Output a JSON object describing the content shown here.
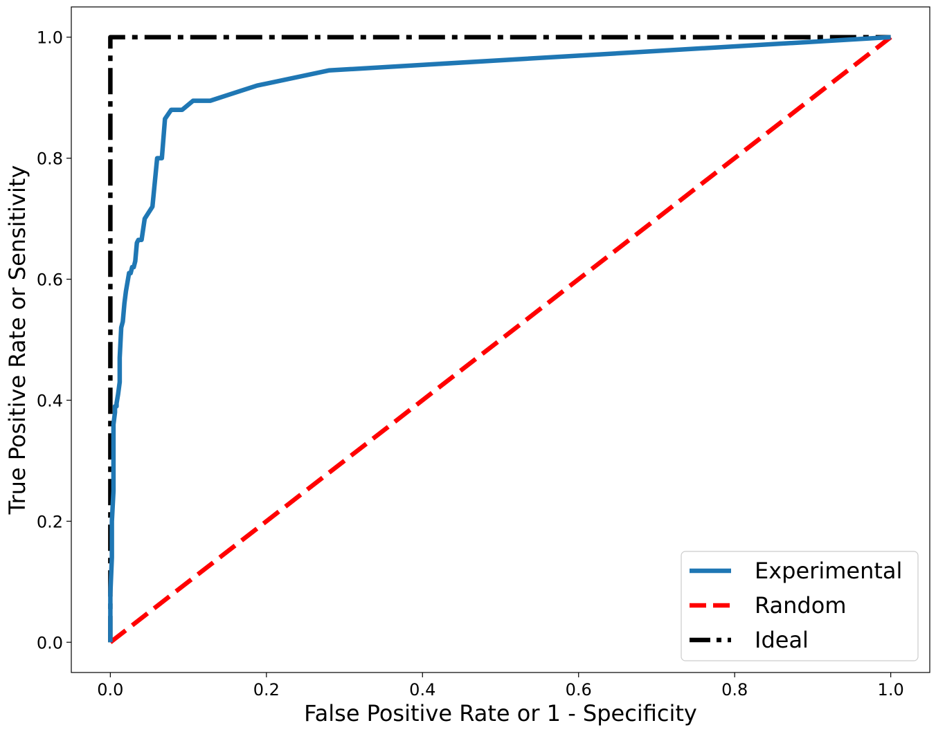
{
  "chart_data": {
    "type": "line",
    "title": "",
    "xlabel": "False Positive Rate or 1 - Specificity",
    "ylabel": "True Positive Rate or Sensitivity",
    "xlim": [
      -0.05,
      1.05
    ],
    "ylim": [
      -0.05,
      1.05
    ],
    "xticks": [
      0.0,
      0.2,
      0.4,
      0.6,
      0.8,
      1.0
    ],
    "yticks": [
      0.0,
      0.2,
      0.4,
      0.6,
      0.8,
      1.0
    ],
    "xtick_labels": [
      "0.0",
      "0.2",
      "0.4",
      "0.6",
      "0.8",
      "1.0"
    ],
    "ytick_labels": [
      "0.0",
      "0.2",
      "0.4",
      "0.6",
      "0.8",
      "1.0"
    ],
    "grid": false,
    "legend_position": "lower-right",
    "series": [
      {
        "name": "Experimental",
        "color": "#1f77b4",
        "style": "solid",
        "x": [
          0.0,
          0.0,
          0.002,
          0.002,
          0.004,
          0.004,
          0.006,
          0.006,
          0.008,
          0.008,
          0.01,
          0.012,
          0.012,
          0.014,
          0.016,
          0.018,
          0.02,
          0.024,
          0.026,
          0.028,
          0.03,
          0.032,
          0.034,
          0.036,
          0.04,
          0.044,
          0.054,
          0.06,
          0.062,
          0.066,
          0.07,
          0.078,
          0.092,
          0.106,
          0.128,
          0.152,
          0.188,
          0.28,
          1.0
        ],
        "y": [
          0.0,
          0.08,
          0.14,
          0.2,
          0.25,
          0.36,
          0.38,
          0.39,
          0.39,
          0.395,
          0.41,
          0.43,
          0.47,
          0.52,
          0.53,
          0.56,
          0.58,
          0.61,
          0.61,
          0.62,
          0.62,
          0.63,
          0.66,
          0.665,
          0.665,
          0.7,
          0.72,
          0.8,
          0.8,
          0.8,
          0.865,
          0.88,
          0.88,
          0.895,
          0.895,
          0.905,
          0.92,
          0.945,
          1.0
        ]
      },
      {
        "name": "Random",
        "color": "#ff0000",
        "style": "dashed",
        "x": [
          0.0,
          1.0
        ],
        "y": [
          0.0,
          1.0
        ]
      },
      {
        "name": "Ideal",
        "color": "#000000",
        "style": "dashdot",
        "x": [
          0.0,
          0.0,
          1.0
        ],
        "y": [
          0.0,
          1.0,
          1.0
        ]
      }
    ]
  }
}
